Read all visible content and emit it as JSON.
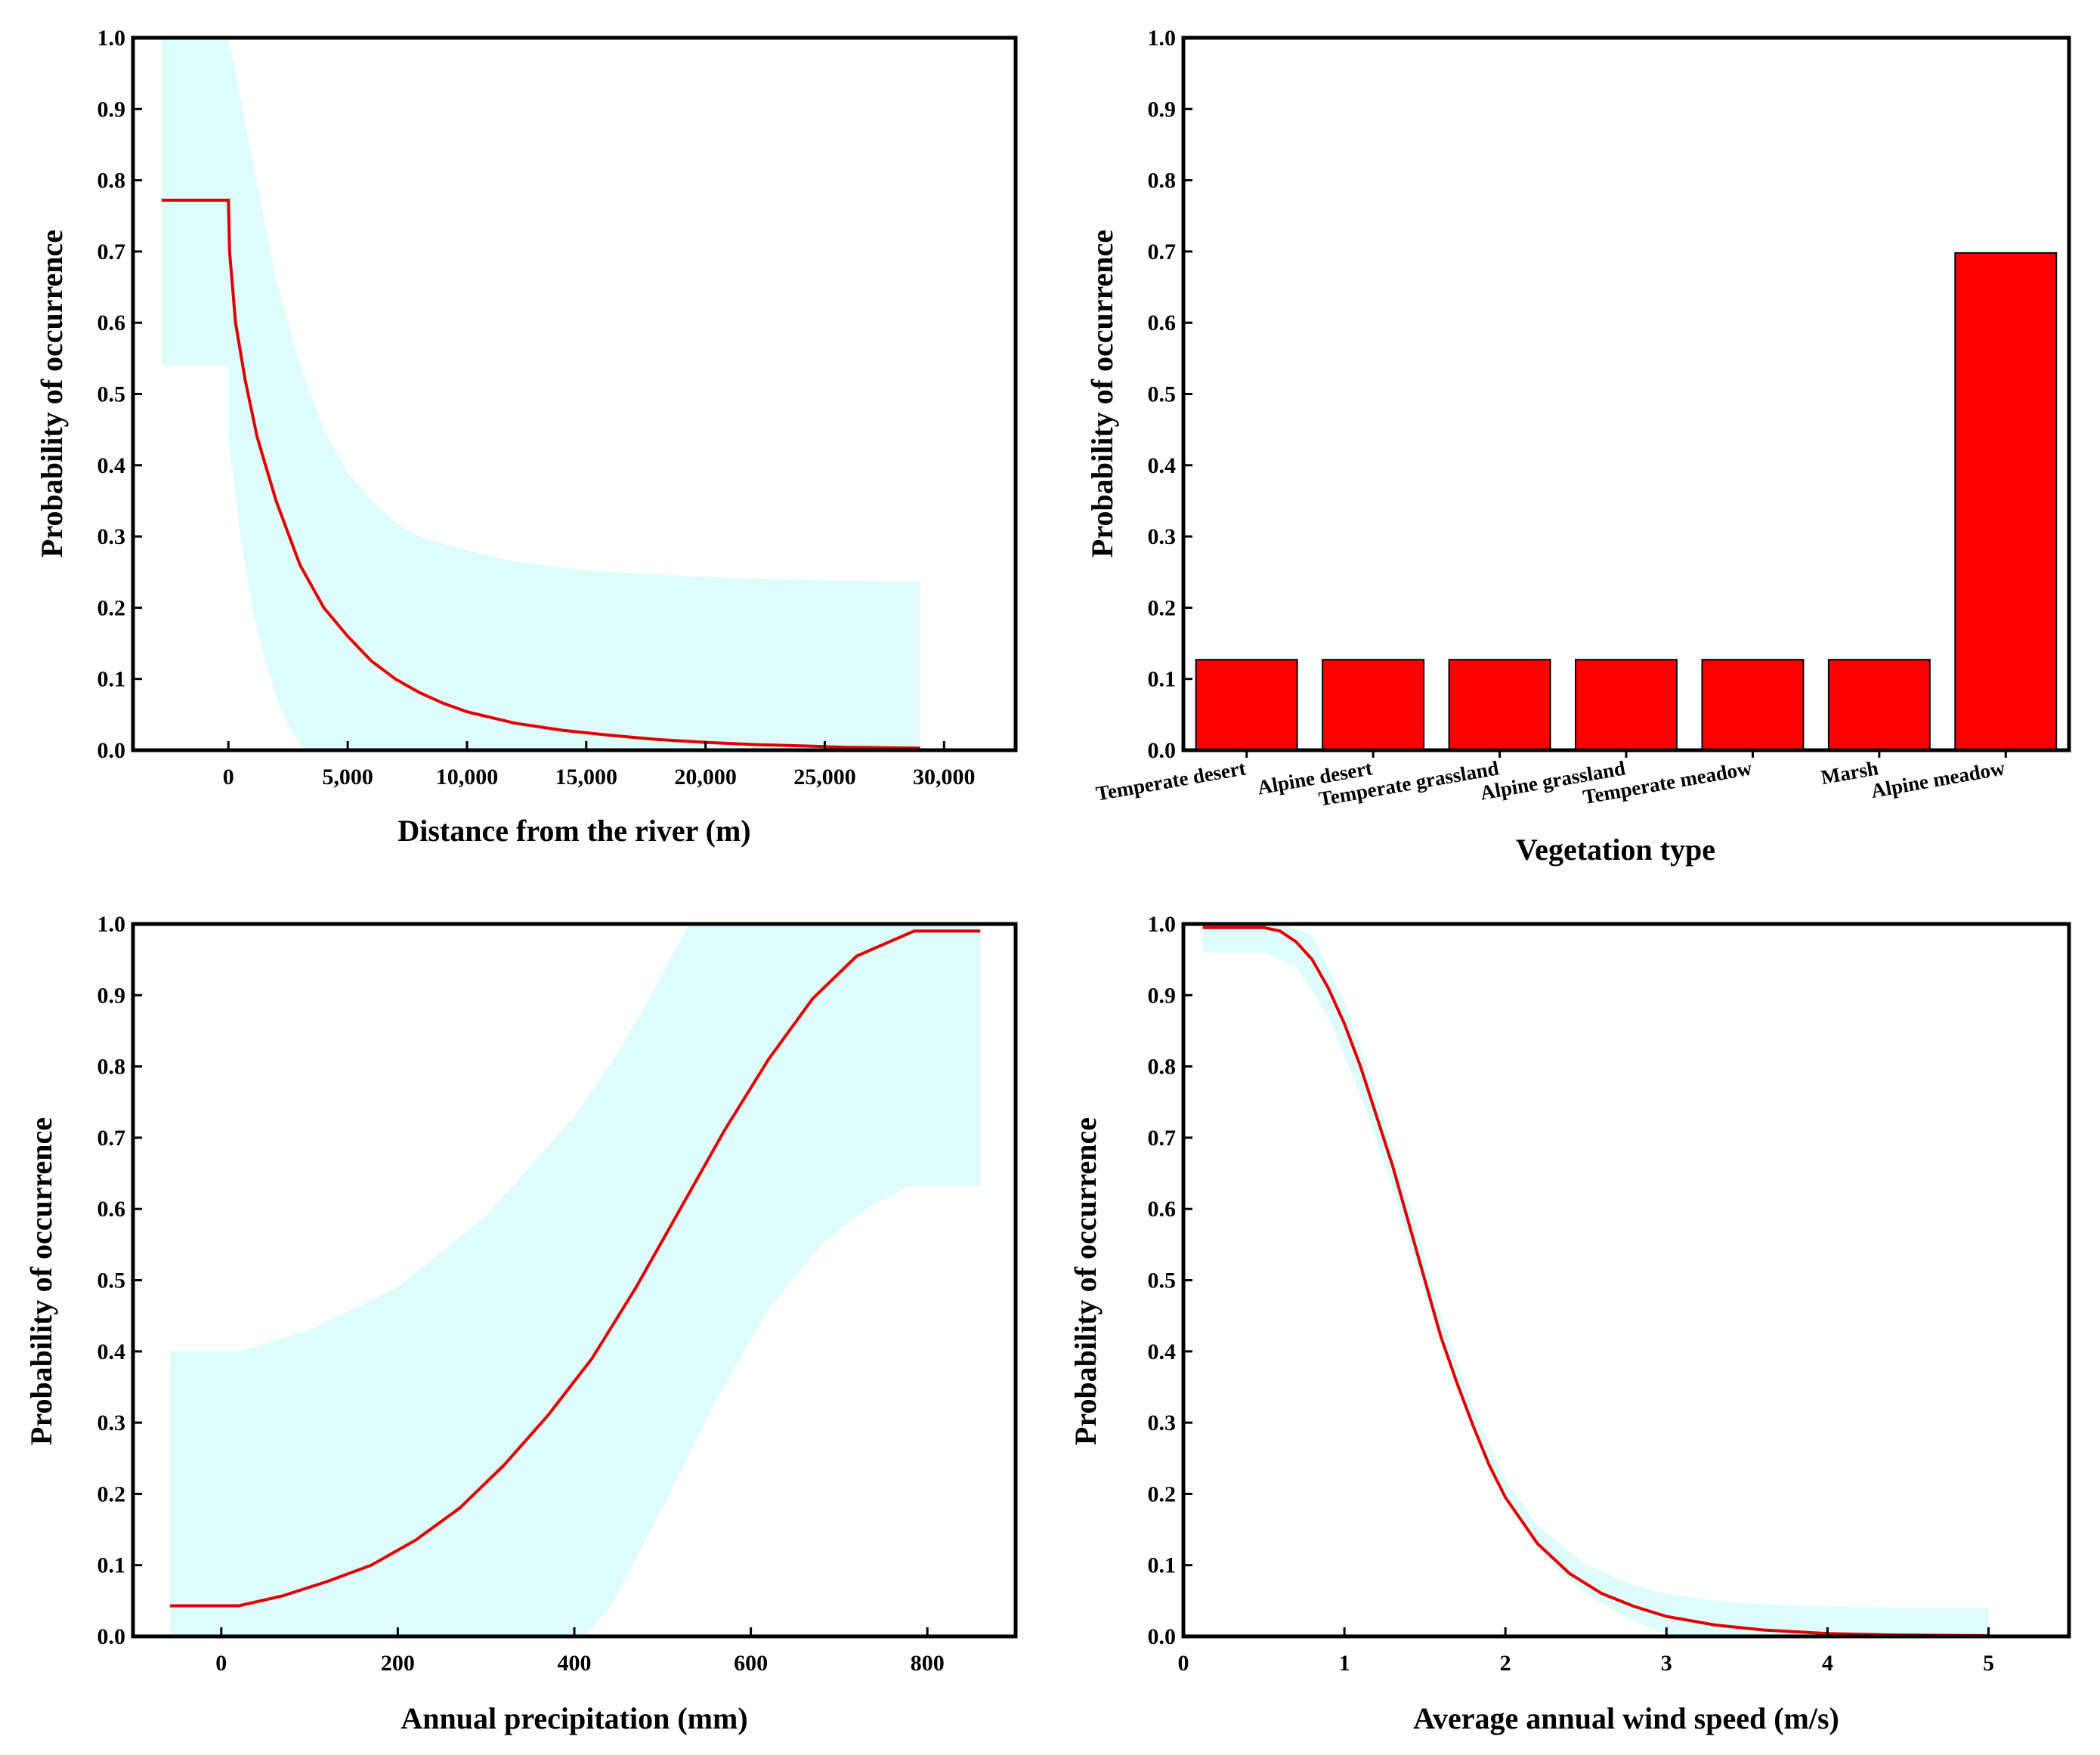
{
  "chart_data": [
    {
      "id": "a",
      "type": "line",
      "title": "",
      "xlabel": "Distance from the river (m)",
      "ylabel": "Probability of occurrence",
      "xlim": [
        -4000,
        33000
      ],
      "ylim": [
        0,
        1
      ],
      "xticks": [
        0,
        5000,
        10000,
        15000,
        20000,
        25000,
        30000
      ],
      "xtick_labels": [
        "0",
        "5,000",
        "10,000",
        "15,000",
        "20,000",
        "25,000",
        "30,000"
      ],
      "yticks": [
        0,
        0.1,
        0.2,
        0.3,
        0.4,
        0.5,
        0.6,
        0.7,
        0.8,
        0.9,
        1.0
      ],
      "ytick_labels": [
        "0.0",
        "0.1",
        "0.2",
        "0.3",
        "0.4",
        "0.5",
        "0.6",
        "0.7",
        "0.8",
        "0.9",
        "1.0"
      ],
      "series": [
        {
          "name": "response",
          "x": [
            -2800,
            0,
            50,
            300,
            700,
            1200,
            2000,
            3000,
            4000,
            5000,
            6000,
            7000,
            8000,
            9000,
            10000,
            12000,
            14000,
            16000,
            18000,
            20000,
            22000,
            24000,
            26000,
            29000
          ],
          "y": [
            0.772,
            0.772,
            0.7,
            0.6,
            0.52,
            0.44,
            0.35,
            0.26,
            0.2,
            0.16,
            0.125,
            0.1,
            0.081,
            0.066,
            0.054,
            0.038,
            0.028,
            0.021,
            0.015,
            0.011,
            0.008,
            0.006,
            0.004,
            0.003
          ]
        },
        {
          "name": "upper",
          "x": [
            -2800,
            0,
            1000,
            2000,
            3000,
            4000,
            5000,
            6000,
            7000,
            8000,
            10000,
            12000,
            15000,
            20000,
            25000,
            29000
          ],
          "y": [
            1.0,
            1.0,
            0.83,
            0.66,
            0.54,
            0.45,
            0.39,
            0.35,
            0.32,
            0.3,
            0.28,
            0.265,
            0.252,
            0.243,
            0.238,
            0.237
          ]
        },
        {
          "name": "lower",
          "x": [
            -2800,
            0,
            0,
            500,
            1000,
            1500,
            2000,
            2500,
            3000,
            3200,
            29000
          ],
          "y": [
            0.54,
            0.54,
            0.44,
            0.3,
            0.2,
            0.13,
            0.075,
            0.035,
            0.008,
            0.0,
            0.0
          ]
        }
      ]
    },
    {
      "id": "b",
      "type": "bar",
      "title": "",
      "xlabel": "Vegetation type",
      "ylabel": "Probability of occurrence",
      "ylim": [
        0,
        1
      ],
      "yticks": [
        0,
        0.1,
        0.2,
        0.3,
        0.4,
        0.5,
        0.6,
        0.7,
        0.8,
        0.9,
        1.0
      ],
      "ytick_labels": [
        "0.0",
        "0.1",
        "0.2",
        "0.3",
        "0.4",
        "0.5",
        "0.6",
        "0.7",
        "0.8",
        "0.9",
        "1.0"
      ],
      "categories": [
        "Temperate desert",
        "Alpine desert",
        "Temperate grassland",
        "Alpine grassland",
        "Temperate meadow",
        "Marsh",
        "Alpine meadow"
      ],
      "values": [
        0.127,
        0.127,
        0.127,
        0.127,
        0.127,
        0.127,
        0.698
      ]
    },
    {
      "id": "c",
      "type": "line",
      "title": "",
      "xlabel": "Annual precipitation (mm)",
      "ylabel": "Probability of occurrence",
      "xlim": [
        -100,
        900
      ],
      "ylim": [
        0,
        1
      ],
      "xticks": [
        0,
        200,
        400,
        600,
        800
      ],
      "xtick_labels": [
        "0",
        "200",
        "400",
        "600",
        "800"
      ],
      "yticks": [
        0,
        0.1,
        0.2,
        0.3,
        0.4,
        0.5,
        0.6,
        0.7,
        0.8,
        0.9,
        1.0
      ],
      "ytick_labels": [
        "0.0",
        "0.1",
        "0.2",
        "0.3",
        "0.4",
        "0.5",
        "0.6",
        "0.7",
        "0.8",
        "0.9",
        "1.0"
      ],
      "series": [
        {
          "name": "response",
          "x": [
            -58,
            20,
            70,
            120,
            170,
            220,
            270,
            320,
            370,
            420,
            470,
            520,
            570,
            620,
            670,
            720,
            785,
            860
          ],
          "y": [
            0.043,
            0.043,
            0.057,
            0.077,
            0.1,
            0.135,
            0.18,
            0.24,
            0.31,
            0.39,
            0.49,
            0.6,
            0.71,
            0.81,
            0.895,
            0.955,
            0.99,
            0.99
          ]
        },
        {
          "name": "upper",
          "x": [
            -58,
            20,
            100,
            200,
            300,
            400,
            450,
            500,
            530,
            860
          ],
          "y": [
            0.4,
            0.4,
            0.43,
            0.49,
            0.59,
            0.73,
            0.82,
            0.93,
            1.0,
            1.0
          ]
        },
        {
          "name": "lower",
          "x": [
            -58,
            410,
            440,
            500,
            560,
            620,
            680,
            730,
            780,
            860
          ],
          "y": [
            0.0,
            0.0,
            0.04,
            0.18,
            0.33,
            0.46,
            0.55,
            0.6,
            0.632,
            0.632
          ]
        }
      ]
    },
    {
      "id": "d",
      "type": "line",
      "title": "",
      "xlabel": "Average annual wind speed (m/s)",
      "ylabel": "Probability of occurrence",
      "xlim": [
        0,
        5.5
      ],
      "ylim": [
        0,
        1
      ],
      "xticks": [
        0,
        1,
        2,
        3,
        4,
        5
      ],
      "xtick_labels": [
        "0",
        "1",
        "2",
        "3",
        "4",
        "5"
      ],
      "yticks": [
        0,
        0.1,
        0.2,
        0.3,
        0.4,
        0.5,
        0.6,
        0.7,
        0.8,
        0.9,
        1.0
      ],
      "ytick_labels": [
        "0.0",
        "0.1",
        "0.2",
        "0.3",
        "0.4",
        "0.5",
        "0.6",
        "0.7",
        "0.8",
        "0.9",
        "1.0"
      ],
      "series": [
        {
          "name": "response",
          "x": [
            0.12,
            0.5,
            0.6,
            0.7,
            0.8,
            0.9,
            1.0,
            1.1,
            1.2,
            1.3,
            1.4,
            1.5,
            1.6,
            1.7,
            1.8,
            1.9,
            2.0,
            2.2,
            2.4,
            2.6,
            2.8,
            3.0,
            3.3,
            3.6,
            4.0,
            4.4,
            5.0
          ],
          "y": [
            0.995,
            0.995,
            0.99,
            0.975,
            0.95,
            0.91,
            0.86,
            0.8,
            0.73,
            0.66,
            0.58,
            0.5,
            0.42,
            0.355,
            0.295,
            0.24,
            0.195,
            0.13,
            0.088,
            0.06,
            0.042,
            0.028,
            0.016,
            0.009,
            0.004,
            0.002,
            0.001
          ]
        },
        {
          "name": "upper",
          "x": [
            0.12,
            0.6,
            0.8,
            1.0,
            1.2,
            1.4,
            1.6,
            1.8,
            2.0,
            2.2,
            2.5,
            2.8,
            3.0,
            3.3,
            3.6,
            4.0,
            4.5,
            5.0
          ],
          "y": [
            1.0,
            1.0,
            0.985,
            0.89,
            0.76,
            0.61,
            0.45,
            0.32,
            0.22,
            0.155,
            0.1,
            0.072,
            0.06,
            0.05,
            0.045,
            0.042,
            0.04,
            0.04
          ]
        },
        {
          "name": "lower",
          "x": [
            0.12,
            0.5,
            0.7,
            0.9,
            1.1,
            1.3,
            1.5,
            1.7,
            1.9,
            2.1,
            2.3,
            2.5,
            2.7,
            2.9,
            3.0,
            3.1,
            5.0
          ],
          "y": [
            0.96,
            0.96,
            0.94,
            0.87,
            0.76,
            0.63,
            0.48,
            0.35,
            0.24,
            0.16,
            0.1,
            0.06,
            0.033,
            0.012,
            0.004,
            0.0,
            0.0
          ]
        }
      ]
    }
  ]
}
